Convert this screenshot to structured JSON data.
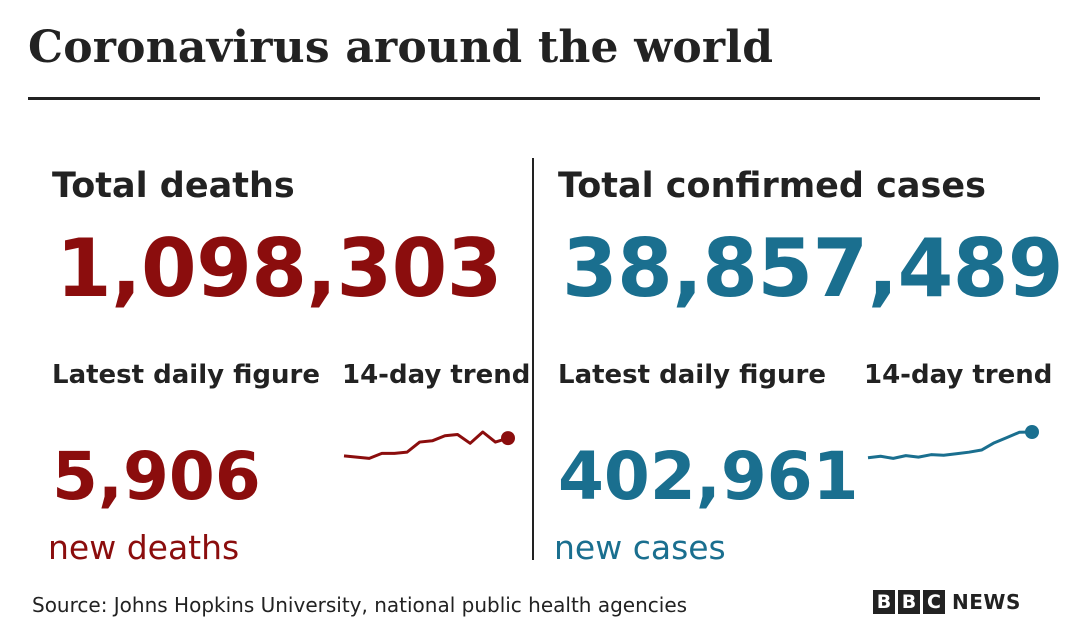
{
  "title": "Coronavirus around the world",
  "colors": {
    "deaths": "#8b0d0d",
    "cases": "#1a6f8f",
    "text": "#222222"
  },
  "deaths": {
    "heading": "Total deaths",
    "total": "1,098,303",
    "daily_label": "Latest daily figure",
    "trend_label": "14-day trend",
    "daily": "5,906",
    "daily_unit": "new deaths"
  },
  "cases": {
    "heading": "Total confirmed cases",
    "total": "38,857,489",
    "daily_label": "Latest daily figure",
    "trend_label": "14-day trend",
    "daily": "402,961",
    "daily_unit": "new cases"
  },
  "source": "Source: Johns Hopkins University, national public health agencies",
  "logo": {
    "letters": [
      "B",
      "B",
      "C"
    ],
    "suffix": "NEWS"
  },
  "chart_data": [
    {
      "type": "line",
      "x": [
        1,
        2,
        3,
        4,
        5,
        6,
        7,
        8,
        9,
        10,
        11,
        12,
        13,
        14
      ],
      "values": [
        5200,
        5150,
        5100,
        5300,
        5300,
        5350,
        5750,
        5800,
        6000,
        6050,
        5700,
        6150,
        5750,
        5906
      ],
      "title": "14-day trend",
      "series": [
        {
          "values": [
            5200,
            5150,
            5100,
            5300,
            5300,
            5350,
            5750,
            5800,
            6000,
            6050,
            5700,
            6150,
            5750,
            5906
          ]
        }
      ]
    },
    {
      "type": "line",
      "x": [
        1,
        2,
        3,
        4,
        5,
        6,
        7,
        8,
        9,
        10,
        11,
        12,
        13,
        14
      ],
      "values": [
        320000,
        325000,
        318000,
        327000,
        322000,
        330000,
        328000,
        333000,
        338000,
        345000,
        368000,
        385000,
        402000,
        402961
      ],
      "title": "14-day trend",
      "series": [
        {
          "values": [
            320000,
            325000,
            318000,
            327000,
            322000,
            330000,
            328000,
            333000,
            338000,
            345000,
            368000,
            385000,
            402000,
            402961
          ]
        }
      ]
    }
  ]
}
